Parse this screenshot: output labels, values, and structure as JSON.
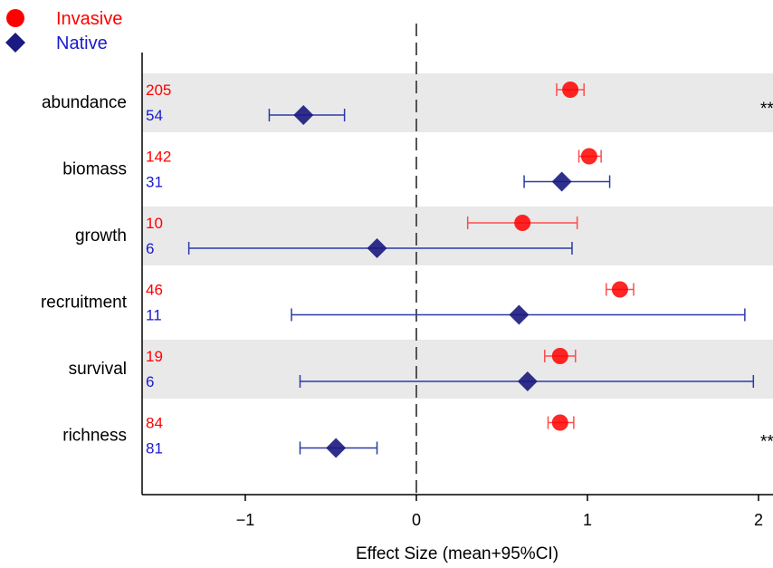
{
  "chart_data": {
    "type": "forest",
    "xlabel": "Effect Size (mean+95%CI)",
    "xlim": [
      -1.6,
      2.1
    ],
    "xticks": [
      -1,
      0,
      1,
      2
    ],
    "xtick_labels": [
      "−1",
      "0",
      "1",
      "2"
    ],
    "reference_line": 0,
    "shaded_rows": [
      "abundance",
      "growth",
      "survival"
    ],
    "legend": [
      {
        "name": "Invasive",
        "marker": "circle",
        "color": "#ff0000"
      },
      {
        "name": "Native",
        "marker": "diamond",
        "color": "#1a1a80"
      }
    ],
    "categories": [
      "abundance",
      "biomass",
      "growth",
      "recruitment",
      "survival",
      "richness"
    ],
    "series": [
      {
        "name": "Invasive",
        "marker": "circle",
        "color": "#ff0000",
        "ci_color": "#ff4d4d",
        "n": [
          205,
          142,
          10,
          46,
          19,
          84
        ],
        "mean": [
          0.9,
          1.01,
          0.62,
          1.19,
          0.84,
          0.84
        ],
        "lower": [
          0.82,
          0.95,
          0.3,
          1.11,
          0.75,
          0.77
        ],
        "upper": [
          0.98,
          1.08,
          0.94,
          1.27,
          0.93,
          0.92
        ]
      },
      {
        "name": "Native",
        "marker": "diamond",
        "color": "#1a1a80",
        "ci_color": "#2b3aa8",
        "n": [
          54,
          31,
          6,
          11,
          6,
          81
        ],
        "mean": [
          -0.66,
          0.85,
          -0.23,
          0.6,
          0.65,
          -0.47
        ],
        "lower": [
          -0.86,
          0.63,
          -1.33,
          -0.73,
          -0.68,
          -0.68
        ],
        "upper": [
          -0.42,
          1.13,
          0.91,
          1.92,
          1.97,
          -0.23
        ]
      }
    ],
    "annotations": [
      {
        "category": "abundance",
        "text": "**"
      },
      {
        "category": "richness",
        "text": "**"
      }
    ],
    "n_colors": {
      "Invasive": "#ff0000",
      "Native": "#1a1acc"
    }
  }
}
